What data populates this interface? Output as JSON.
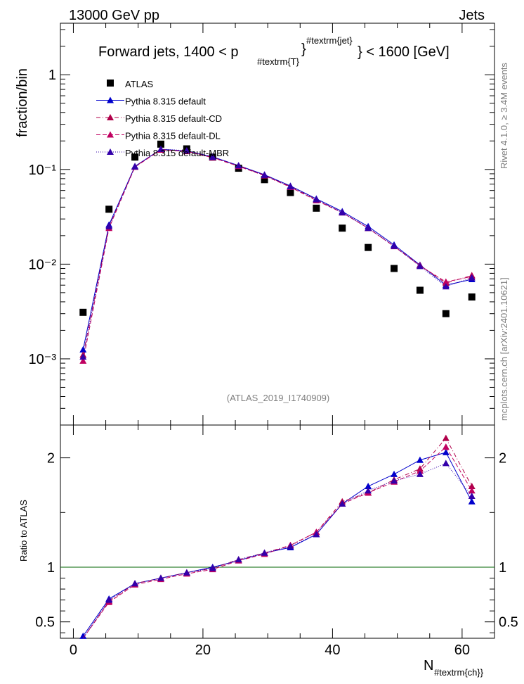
{
  "header": {
    "left": "13000 GeV pp",
    "right": "Jets",
    "side_right_top": "Rivet 4.1.0, ≥ 3.4M events",
    "side_right_bottom": "mcplots.cern.ch [arXiv:2401.10621]",
    "watermark": "(ATLAS_2019_I1740909)"
  },
  "chart_data": [
    {
      "type": "scatter",
      "panel": "main",
      "title_parts": {
        "prefix": "Forward jets, 1400 < p",
        "sub": "#textrm{T}",
        "sup": "#textrm{jet}",
        "suffix": "} < 1600 [GeV]"
      },
      "ylabel": "fraction/bin",
      "yscale": "log",
      "ylim": [
        0.0002,
        3.5
      ],
      "xlim": [
        -2,
        65
      ],
      "y_tick_labels": [
        "10⁻³",
        "10⁻²",
        "10⁻¹",
        "1"
      ],
      "x": [
        1.5,
        5.5,
        9.5,
        13.5,
        17.5,
        21.5,
        25.5,
        29.5,
        33.5,
        37.5,
        41.5,
        45.5,
        49.5,
        53.5,
        57.5,
        61.5
      ],
      "series": [
        {
          "name": "ATLAS",
          "color": "#000000",
          "marker": "square",
          "line": "none",
          "values": [
            0.0031,
            0.038,
            0.135,
            0.185,
            0.165,
            0.135,
            0.103,
            0.078,
            0.057,
            0.039,
            0.024,
            0.015,
            0.009,
            0.0053,
            0.003,
            0.0045
          ]
        },
        {
          "name": "Pythia 8.315 default",
          "color": "#0000cc",
          "marker": "triangle",
          "line": "solid",
          "values": [
            0.00125,
            0.026,
            0.108,
            0.163,
            0.157,
            0.136,
            0.11,
            0.088,
            0.067,
            0.049,
            0.036,
            0.025,
            0.016,
            0.0098,
            0.006,
            0.0069
          ]
        },
        {
          "name": "Pythia 8.315 default-CD",
          "color": "#b0004a",
          "marker": "triangle",
          "line": "dashdot",
          "values": [
            0.0011,
            0.025,
            0.107,
            0.162,
            0.156,
            0.134,
            0.109,
            0.087,
            0.066,
            0.048,
            0.035,
            0.024,
            0.0155,
            0.0097,
            0.0063,
            0.0076
          ]
        },
        {
          "name": "Pythia 8.315 default-DL",
          "color": "#c00060",
          "marker": "triangle",
          "line": "dashed",
          "values": [
            0.00095,
            0.024,
            0.106,
            0.161,
            0.155,
            0.133,
            0.108,
            0.086,
            0.065,
            0.047,
            0.035,
            0.024,
            0.0154,
            0.0096,
            0.0065,
            0.0074
          ]
        },
        {
          "name": "Pythia 8.315 default-MBR",
          "color": "#3300aa",
          "marker": "triangle",
          "line": "dotted",
          "values": [
            0.00105,
            0.025,
            0.107,
            0.164,
            0.158,
            0.135,
            0.11,
            0.087,
            0.066,
            0.048,
            0.035,
            0.024,
            0.0155,
            0.0095,
            0.0058,
            0.0072
          ]
        }
      ]
    },
    {
      "type": "scatter",
      "panel": "ratio",
      "ylabel": "Ratio to ATLAS",
      "xlabel_main": "N",
      "xlabel_sub": "#textrm{ch}}",
      "ylim": [
        0.35,
        2.3
      ],
      "xlim": [
        -2,
        65
      ],
      "y_tick_labels": [
        "0.5",
        "1",
        "2"
      ],
      "x_tick_labels": [
        "0",
        "20",
        "40",
        "60"
      ],
      "reference_line": 1,
      "x": [
        1.5,
        5.5,
        9.5,
        13.5,
        17.5,
        21.5,
        25.5,
        29.5,
        33.5,
        37.5,
        41.5,
        45.5,
        49.5,
        53.5,
        57.5,
        61.5
      ],
      "series": [
        {
          "name": "Pythia 8.315 default",
          "color": "#0000cc",
          "line": "solid",
          "values": [
            0.37,
            0.71,
            0.85,
            0.9,
            0.95,
            1.0,
            1.06,
            1.13,
            1.18,
            1.3,
            1.58,
            1.74,
            1.85,
            1.98,
            2.05,
            1.6
          ]
        },
        {
          "name": "Pythia 8.315 default-CD",
          "color": "#b0004a",
          "line": "dashdot",
          "values": [
            0.32,
            0.69,
            0.85,
            0.9,
            0.95,
            0.99,
            1.07,
            1.13,
            1.2,
            1.32,
            1.6,
            1.68,
            1.8,
            1.9,
            2.18,
            1.74
          ]
        },
        {
          "name": "Pythia 8.315 default-DL",
          "color": "#c00060",
          "line": "dashed",
          "values": [
            0.3,
            0.68,
            0.84,
            0.89,
            0.94,
            0.98,
            1.06,
            1.12,
            1.2,
            1.32,
            1.58,
            1.68,
            1.78,
            1.88,
            2.1,
            1.7
          ]
        },
        {
          "name": "Pythia 8.315 default-MBR",
          "color": "#3300aa",
          "line": "dotted",
          "values": [
            0.33,
            0.7,
            0.85,
            0.9,
            0.95,
            0.99,
            1.07,
            1.13,
            1.19,
            1.3,
            1.58,
            1.7,
            1.79,
            1.85,
            1.95,
            1.65
          ]
        }
      ]
    }
  ]
}
